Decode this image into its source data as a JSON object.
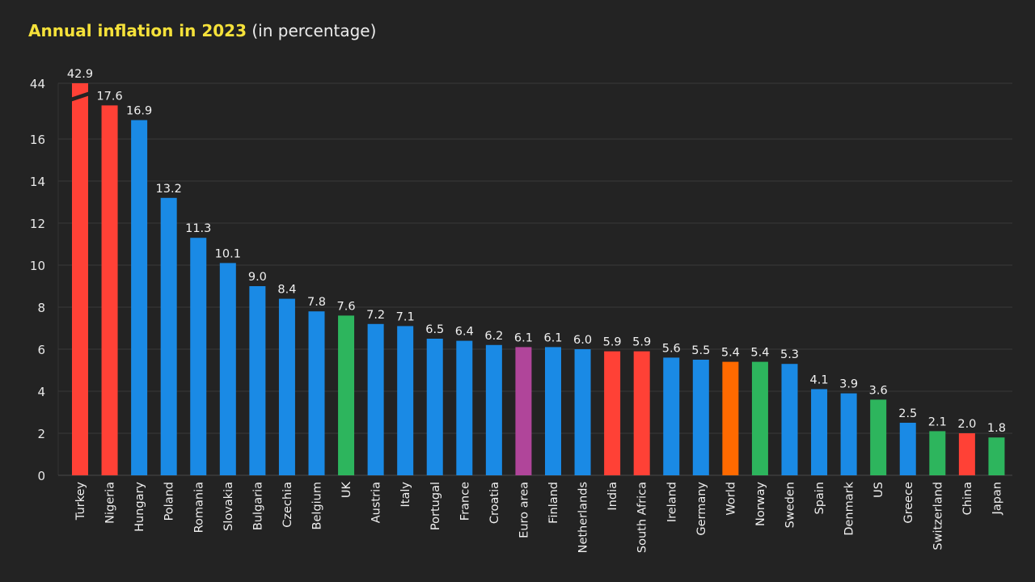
{
  "title": {
    "main": "Annual inflation in 2023",
    "sub": "(in percentage)"
  },
  "colors": {
    "background": "#232323",
    "title": "#f5e13a",
    "grid": "#3a3a3a",
    "red": "#ff4136",
    "blue": "#1a8ae5",
    "green": "#2db55d",
    "purple": "#b0459a",
    "orange": "#ff6a00"
  },
  "chart_data": {
    "type": "bar",
    "title": "Annual inflation in 2023 (in percentage)",
    "xlabel": "",
    "ylabel": "",
    "ylim": [
      0,
      44
    ],
    "axis_break": "between 16 and 44",
    "y_ticks": [
      "0",
      "2",
      "4",
      "6",
      "8",
      "10",
      "12",
      "14",
      "16",
      "44"
    ],
    "grid": true,
    "legend": "none",
    "categories": [
      "Turkey",
      "Nigeria",
      "Hungary",
      "Poland",
      "Romania",
      "Slovakia",
      "Bulgaria",
      "Czechia",
      "Belgium",
      "UK",
      "Austria",
      "Italy",
      "Portugal",
      "France",
      "Croatia",
      "Euro area",
      "Finland",
      "Netherlands",
      "India",
      "South Africa",
      "Ireland",
      "Germany",
      "World",
      "Norway",
      "Sweden",
      "Spain",
      "Denmark",
      "US",
      "Greece",
      "Switzerland",
      "China",
      "Japan"
    ],
    "values": [
      42.9,
      17.6,
      16.9,
      13.2,
      11.3,
      10.1,
      9.0,
      8.4,
      7.8,
      7.6,
      7.2,
      7.1,
      6.5,
      6.4,
      6.2,
      6.1,
      6.1,
      6.0,
      5.9,
      5.9,
      5.6,
      5.5,
      5.4,
      5.4,
      5.3,
      4.1,
      3.9,
      3.6,
      2.5,
      2.1,
      2.0,
      1.8
    ],
    "value_labels": [
      "42.9",
      "17.6",
      "16.9",
      "13.2",
      "11.3",
      "10.1",
      "9.0",
      "8.4",
      "7.8",
      "7.6",
      "7.2",
      "7.1",
      "6.5",
      "6.4",
      "6.2",
      "6.1",
      "6.1",
      "6.0",
      "5.9",
      "5.9",
      "5.6",
      "5.5",
      "5.4",
      "5.4",
      "5.3",
      "4.1",
      "3.9",
      "3.6",
      "2.5",
      "2.1",
      "2.0",
      "1.8"
    ],
    "bar_colors": [
      "red",
      "red",
      "blue",
      "blue",
      "blue",
      "blue",
      "blue",
      "blue",
      "blue",
      "green",
      "blue",
      "blue",
      "blue",
      "blue",
      "blue",
      "purple",
      "blue",
      "blue",
      "red",
      "red",
      "blue",
      "blue",
      "orange",
      "green",
      "blue",
      "blue",
      "blue",
      "green",
      "blue",
      "green",
      "red",
      "green"
    ]
  }
}
